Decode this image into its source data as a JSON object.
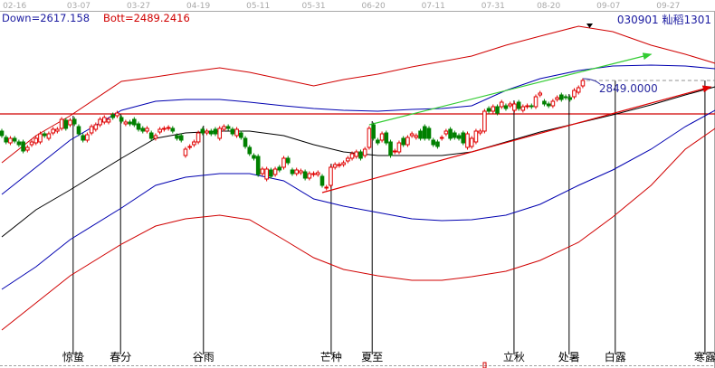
{
  "header": {
    "down_label": "Down=2617.158",
    "bott_label": "Bott=2489.2416",
    "code_label": "030901  籼稻1301"
  },
  "colors": {
    "up": "#e00000",
    "down": "#008000",
    "band_outer": "#d00000",
    "band_inner": "#0000b0",
    "ma": "#000000",
    "trend_red": "#e00000",
    "trend_green": "#33cc33",
    "level": "#d00000"
  },
  "chart_data": {
    "type": "candlestick",
    "x_unit": "bar index",
    "date_ticks": [
      {
        "bar": 3,
        "label": "02-16"
      },
      {
        "bar": 18,
        "label": "03-07"
      },
      {
        "bar": 32,
        "label": "03-27"
      },
      {
        "bar": 46,
        "label": "04-19"
      },
      {
        "bar": 60,
        "label": "05-11"
      },
      {
        "bar": 73,
        "label": "05-31"
      },
      {
        "bar": 87,
        "label": "06-20"
      },
      {
        "bar": 101,
        "label": "07-11"
      },
      {
        "bar": 115,
        "label": "07-31"
      },
      {
        "bar": 128,
        "label": "08-20"
      },
      {
        "bar": 142,
        "label": "09-07"
      },
      {
        "bar": 156,
        "label": "09-27"
      }
    ],
    "candles_open_close": [
      [
        2737,
        2727
      ],
      [
        2723,
        2713
      ],
      [
        2711,
        2721
      ],
      [
        2721,
        2715
      ],
      [
        2713,
        2707
      ],
      [
        2713,
        2693
      ],
      [
        2695,
        2701
      ],
      [
        2707,
        2713
      ],
      [
        2711,
        2721
      ],
      [
        2713,
        2731
      ],
      [
        2731,
        2727
      ],
      [
        2721,
        2731
      ],
      [
        2733,
        2741
      ],
      [
        2737,
        2741
      ],
      [
        2743,
        2763
      ],
      [
        2761,
        2743
      ],
      [
        2751,
        2761
      ],
      [
        2763,
        2753
      ],
      [
        2747,
        2731
      ],
      [
        2727,
        2717
      ],
      [
        2717,
        2729
      ],
      [
        2733,
        2747
      ],
      [
        2741,
        2751
      ],
      [
        2751,
        2763
      ],
      [
        2757,
        2767
      ],
      [
        2757,
        2763
      ],
      [
        2773,
        2767
      ],
      [
        2771,
        2777
      ],
      [
        2767,
        2759
      ],
      [
        2753,
        2757
      ],
      [
        2757,
        2753
      ],
      [
        2763,
        2751
      ],
      [
        2753,
        2741
      ],
      [
        2743,
        2737
      ],
      [
        2737,
        2743
      ],
      [
        2733,
        2721
      ],
      [
        2721,
        2727
      ],
      [
        2735,
        2741
      ],
      [
        2741,
        2743
      ],
      [
        2743,
        2745
      ],
      [
        2743,
        2737
      ],
      [
        2727,
        2721
      ],
      [
        2727,
        2717
      ],
      [
        2683,
        2697
      ],
      [
        2701,
        2703
      ],
      [
        2707,
        2713
      ],
      [
        2713,
        2733
      ],
      [
        2741,
        2733
      ],
      [
        2733,
        2737
      ],
      [
        2737,
        2731
      ],
      [
        2741,
        2731
      ],
      [
        2721,
        2743
      ],
      [
        2741,
        2747
      ],
      [
        2747,
        2743
      ],
      [
        2741,
        2731
      ],
      [
        2727,
        2741
      ],
      [
        2733,
        2723
      ],
      [
        2721,
        2703
      ],
      [
        2701,
        2687
      ],
      [
        2683,
        2677
      ],
      [
        2681,
        2641
      ],
      [
        2643,
        2653
      ],
      [
        2631,
        2653
      ],
      [
        2651,
        2637
      ],
      [
        2641,
        2653
      ],
      [
        2657,
        2651
      ],
      [
        2657,
        2677
      ],
      [
        2677,
        2667
      ],
      [
        2651,
        2643
      ],
      [
        2643,
        2651
      ],
      [
        2645,
        2649
      ],
      [
        2647,
        2633
      ],
      [
        2633,
        2643
      ],
      [
        2641,
        2643
      ],
      [
        2641,
        2645
      ],
      [
        2637,
        2617
      ],
      [
        2611,
        2613
      ],
      [
        2617,
        2657
      ],
      [
        2657,
        2663
      ],
      [
        2661,
        2663
      ],
      [
        2663,
        2667
      ],
      [
        2671,
        2677
      ],
      [
        2677,
        2687
      ],
      [
        2681,
        2691
      ],
      [
        2691,
        2677
      ],
      [
        2683,
        2697
      ],
      [
        2701,
        2743
      ],
      [
        2751,
        2721
      ],
      [
        2717,
        2711
      ],
      [
        2717,
        2731
      ],
      [
        2733,
        2711
      ],
      [
        2713,
        2683
      ],
      [
        2691,
        2693
      ],
      [
        2691,
        2711
      ],
      [
        2721,
        2707
      ],
      [
        2707,
        2723
      ],
      [
        2727,
        2731
      ],
      [
        2723,
        2727
      ],
      [
        2737,
        2721
      ],
      [
        2747,
        2721
      ],
      [
        2743,
        2721
      ],
      [
        2717,
        2707
      ],
      [
        2713,
        2703
      ],
      [
        2721,
        2723
      ],
      [
        2731,
        2737
      ],
      [
        2741,
        2721
      ],
      [
        2733,
        2723
      ],
      [
        2727,
        2721
      ],
      [
        2733,
        2711
      ],
      [
        2701,
        2731
      ],
      [
        2703,
        2721
      ],
      [
        2713,
        2737
      ],
      [
        2733,
        2737
      ],
      [
        2737,
        2781
      ],
      [
        2787,
        2781
      ],
      [
        2781,
        2791
      ],
      [
        2791,
        2777
      ],
      [
        2791,
        2801
      ],
      [
        2793,
        2787
      ],
      [
        2793,
        2797
      ],
      [
        2783,
        2797
      ],
      [
        2801,
        2787
      ],
      [
        2783,
        2791
      ],
      [
        2791,
        2793
      ],
      [
        2793,
        2791
      ],
      [
        2791,
        2813
      ],
      [
        2817,
        2821
      ],
      [
        2803,
        2797
      ],
      [
        2797,
        2793
      ],
      [
        2793,
        2803
      ],
      [
        2807,
        2811
      ],
      [
        2817,
        2807
      ],
      [
        2813,
        2811
      ],
      [
        2811,
        2807
      ],
      [
        2813,
        2827
      ],
      [
        2823,
        2833
      ],
      [
        2837,
        2849
      ]
    ],
    "line_bars": [
      0,
      8,
      16,
      28,
      36,
      43,
      51,
      58,
      66,
      73,
      80,
      88,
      96,
      103,
      110,
      118,
      126,
      135,
      143,
      152,
      160,
      167
    ],
    "lines": [
      {
        "key": "upper_outer",
        "color": "#d00000",
        "values": [
          2667,
          2727,
          2771,
          2847,
          2857,
          2867,
          2877,
          2867,
          2851,
          2837,
          2851,
          2863,
          2879,
          2891,
          2903,
          2927,
          2947,
          2969,
          2957,
          2927,
          2907,
          2887
        ]
      },
      {
        "key": "upper_inner",
        "color": "#0000b0",
        "values": [
          2597,
          2657,
          2717,
          2783,
          2803,
          2807,
          2807,
          2801,
          2793,
          2787,
          2783,
          2781,
          2785,
          2787,
          2793,
          2827,
          2853,
          2871,
          2881,
          2883,
          2881,
          2875
        ]
      },
      {
        "key": "middle",
        "color": "#000000",
        "values": [
          2503,
          2563,
          2607,
          2677,
          2721,
          2733,
          2737,
          2737,
          2727,
          2707,
          2691,
          2683,
          2683,
          2683,
          2691,
          2713,
          2735,
          2755,
          2773,
          2795,
          2817,
          2835
        ]
      },
      {
        "key": "lower_inner",
        "color": "#0000b0",
        "values": [
          2387,
          2437,
          2497,
          2567,
          2617,
          2635,
          2643,
          2643,
          2627,
          2587,
          2571,
          2557,
          2543,
          2539,
          2541,
          2551,
          2575,
          2617,
          2651,
          2697,
          2747,
          2783
        ]
      },
      {
        "key": "lower_outer",
        "color": "#d00000",
        "values": [
          2297,
          2357,
          2417,
          2487,
          2527,
          2543,
          2551,
          2541,
          2497,
          2457,
          2431,
          2417,
          2407,
          2407,
          2415,
          2427,
          2451,
          2491,
          2547,
          2617,
          2697,
          2743
        ]
      }
    ],
    "horizontal_level": 2775,
    "price_marker": {
      "value": 2849,
      "label": "2849.0000"
    },
    "trendlines": [
      {
        "key": "red",
        "from": [
          75,
          2601
        ],
        "to": [
          166,
          2835
        ]
      },
      {
        "key": "green",
        "from": [
          86,
          2751
        ],
        "to": [
          152,
          2907
        ]
      }
    ],
    "solar_terms": [
      {
        "bar": 16.7,
        "label": "惊蛰"
      },
      {
        "bar": 27.8,
        "label": "春分"
      },
      {
        "bar": 47.2,
        "label": "谷雨"
      },
      {
        "bar": 77.1,
        "label": "芒种"
      },
      {
        "bar": 86.7,
        "label": "夏至"
      },
      {
        "bar": 119.9,
        "label": "立秋"
      },
      {
        "bar": 132.8,
        "label": "处暑"
      },
      {
        "bar": 143.6,
        "label": "白露"
      },
      {
        "bar": 164.6,
        "label": "寒露"
      }
    ]
  }
}
